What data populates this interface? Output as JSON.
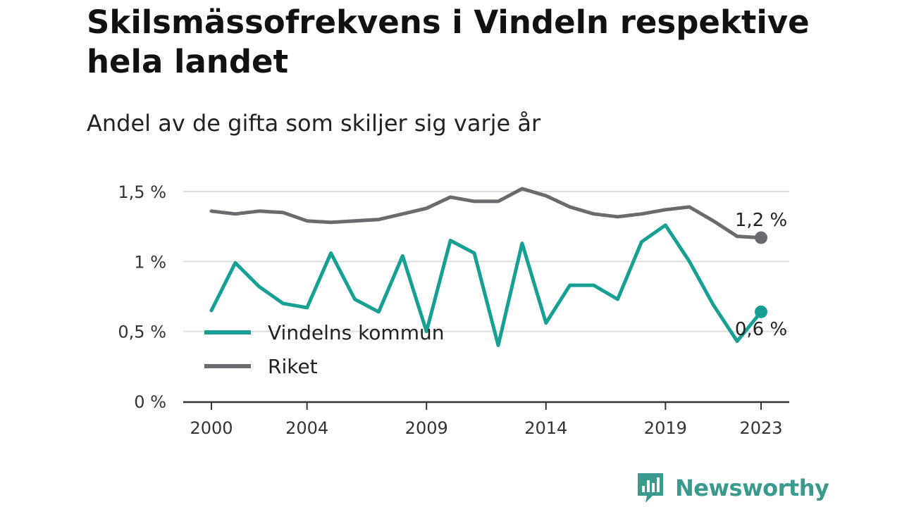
{
  "title": "Skilsmässofrekvens i Vindeln respektive hela landet",
  "subtitle": "Andel av de gifta som skiljer sig varje år",
  "brand": {
    "name": "Newsworthy",
    "icon": "newsworthy-logo-icon",
    "color": "#3a9a8e"
  },
  "chart_data": {
    "type": "line",
    "x": [
      2000,
      2001,
      2002,
      2003,
      2004,
      2005,
      2006,
      2007,
      2008,
      2009,
      2010,
      2011,
      2012,
      2013,
      2014,
      2015,
      2016,
      2017,
      2018,
      2019,
      2020,
      2021,
      2022,
      2023
    ],
    "x_ticks": [
      "2000",
      "2004",
      "2009",
      "2014",
      "2019",
      "2023"
    ],
    "y_ticks": [
      "0 %",
      "0,5 %",
      "1 %",
      "1,5 %"
    ],
    "ylim": [
      0,
      1.5
    ],
    "grid": true,
    "legend": "bottom-left",
    "series": [
      {
        "name": "Vindelns kommun",
        "color": "#16a093",
        "values": [
          0.65,
          0.99,
          0.82,
          0.7,
          0.67,
          1.06,
          0.73,
          0.64,
          1.04,
          0.5,
          1.15,
          1.06,
          0.4,
          1.13,
          0.56,
          0.83,
          0.83,
          0.73,
          1.14,
          1.26,
          1.0,
          0.69,
          0.43,
          0.64
        ],
        "end_label": "0,6 %"
      },
      {
        "name": "Riket",
        "color": "#6b6a6f",
        "values": [
          1.36,
          1.34,
          1.36,
          1.35,
          1.29,
          1.28,
          1.29,
          1.3,
          1.34,
          1.38,
          1.46,
          1.43,
          1.43,
          1.52,
          1.47,
          1.39,
          1.34,
          1.32,
          1.34,
          1.37,
          1.39,
          1.29,
          1.18,
          1.17
        ],
        "end_label": "1,2 %"
      }
    ]
  }
}
